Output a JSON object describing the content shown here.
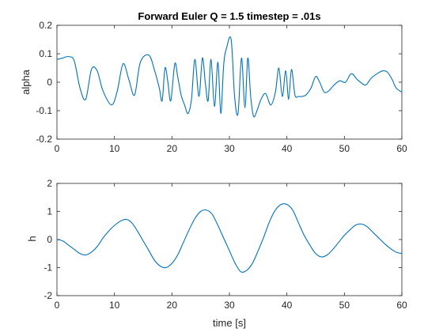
{
  "chart_data": [
    {
      "type": "line",
      "title": "Forward Euler Q = 1.5 timestep = .01s",
      "xlabel": "",
      "ylabel": "alpha",
      "xlim": [
        0,
        60
      ],
      "ylim": [
        -0.2,
        0.2
      ],
      "xticks": [
        0,
        10,
        20,
        30,
        40,
        50,
        60
      ],
      "yticks": [
        -0.2,
        -0.1,
        0,
        0.1,
        0.2
      ],
      "xtick_labels": [
        "0",
        "10",
        "20",
        "30",
        "40",
        "50",
        "60"
      ],
      "ytick_labels": [
        "-0.2",
        "-0.1",
        "0",
        "0.1",
        "0.2"
      ],
      "grid": false,
      "color": "#0072bd",
      "series": [
        {
          "x": [
            0,
            1,
            2,
            3,
            4,
            5,
            6,
            7,
            8,
            9.5,
            10.5,
            11.5,
            12.5,
            13.5,
            14.5,
            16,
            17,
            17.8,
            18.3,
            18.8,
            19.3,
            19.8,
            20.5,
            21,
            21.6,
            22.2,
            22.8,
            23.4,
            24,
            24.7,
            25.3,
            25.8,
            26.3,
            26.8,
            27.4,
            28,
            28.5,
            29,
            29.5,
            30.3,
            30.9,
            31.5,
            32.1,
            32.7,
            33.2,
            33.7,
            34.2,
            34.8,
            35.5,
            36.3,
            37.2,
            38,
            38.6,
            39.2,
            39.8,
            40.3,
            40.8,
            41.4,
            42,
            42.6,
            43.3,
            44.2,
            45,
            45.7,
            46.5,
            47.3,
            48.2,
            49.2,
            50.2,
            51.2,
            52.2,
            52.8,
            53.7,
            54.7,
            55.7,
            56.7,
            57.5,
            58.3,
            59,
            60
          ],
          "y": [
            0.08,
            0.085,
            0.09,
            0.075,
            -0.02,
            -0.06,
            0.045,
            0.04,
            -0.03,
            -0.08,
            -0.03,
            0.065,
            0.01,
            -0.045,
            0.07,
            0.095,
            0.04,
            -0.02,
            -0.065,
            0.05,
            0.0,
            -0.065,
            0.065,
            0.02,
            -0.045,
            -0.08,
            -0.11,
            -0.06,
            0.08,
            -0.05,
            0.085,
            0.0,
            -0.065,
            0.08,
            -0.085,
            0.07,
            -0.11,
            0.06,
            0.12,
            0.15,
            -0.05,
            -0.11,
            0.085,
            -0.09,
            0.085,
            -0.05,
            -0.12,
            -0.1,
            -0.06,
            -0.04,
            -0.08,
            -0.035,
            0.05,
            -0.05,
            0.04,
            -0.06,
            0.045,
            -0.045,
            -0.05,
            -0.05,
            -0.045,
            -0.02,
            0.02,
            0.0,
            -0.035,
            -0.03,
            -0.01,
            0.005,
            0.0,
            0.03,
            0.01,
            0.0,
            -0.01,
            0.015,
            0.03,
            0.04,
            0.035,
            0.01,
            -0.02,
            -0.035
          ]
        }
      ]
    },
    {
      "type": "line",
      "title": "",
      "xlabel": "time [s]",
      "ylabel": "h",
      "xlim": [
        0,
        60
      ],
      "ylim": [
        -2,
        2
      ],
      "xticks": [
        0,
        10,
        20,
        30,
        40,
        50,
        60
      ],
      "yticks": [
        -2,
        -1,
        0,
        1,
        2
      ],
      "xtick_labels": [
        "0",
        "10",
        "20",
        "30",
        "40",
        "50",
        "60"
      ],
      "ytick_labels": [
        "-2",
        "-1",
        "0",
        "1",
        "2"
      ],
      "grid": false,
      "color": "#0072bd",
      "series": [
        {
          "x": [
            0,
            1,
            2,
            3,
            4,
            5,
            6,
            7,
            8,
            9,
            10,
            11,
            12,
            13,
            14,
            15,
            16,
            17,
            18,
            19,
            20,
            21,
            22,
            23,
            24,
            25,
            26,
            27,
            28,
            29,
            30,
            31,
            32,
            33,
            34,
            35,
            36,
            37,
            38,
            39,
            40,
            41,
            42,
            43,
            44,
            45,
            46,
            47,
            48,
            49,
            50,
            51,
            52,
            53,
            54,
            55,
            56,
            57,
            58,
            59,
            60
          ],
          "y": [
            0.0,
            -0.05,
            -0.2,
            -0.35,
            -0.5,
            -0.55,
            -0.45,
            -0.25,
            0.05,
            0.3,
            0.5,
            0.65,
            0.72,
            0.6,
            0.3,
            -0.05,
            -0.4,
            -0.75,
            -0.95,
            -1.0,
            -0.85,
            -0.55,
            -0.1,
            0.35,
            0.75,
            1.0,
            1.05,
            0.9,
            0.5,
            0.05,
            -0.4,
            -0.85,
            -1.15,
            -1.1,
            -0.85,
            -0.4,
            0.1,
            0.65,
            1.05,
            1.25,
            1.25,
            1.05,
            0.6,
            0.15,
            -0.2,
            -0.5,
            -0.62,
            -0.55,
            -0.35,
            -0.1,
            0.15,
            0.35,
            0.52,
            0.55,
            0.45,
            0.25,
            0.05,
            -0.15,
            -0.32,
            -0.45,
            -0.5
          ]
        }
      ]
    }
  ]
}
